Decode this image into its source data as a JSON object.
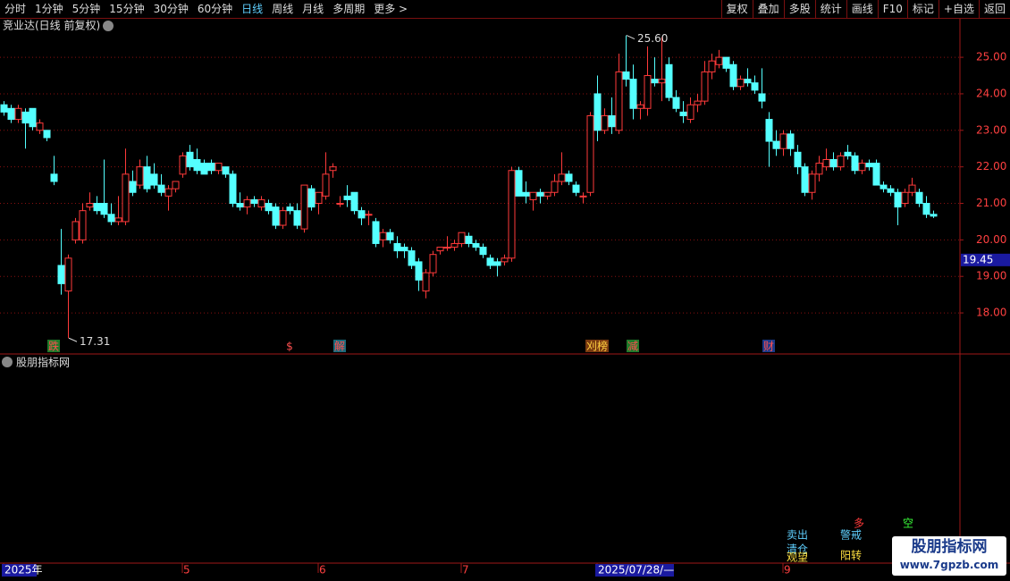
{
  "toolbar": {
    "periods": [
      "分时",
      "1分钟",
      "5分钟",
      "15分钟",
      "30分钟",
      "60分钟",
      "日线",
      "周线",
      "月线",
      "多周期",
      "更多 >"
    ],
    "actions": [
      "复权",
      "叠加",
      "多股",
      "统计",
      "画线",
      "F10",
      "标记",
      "+自选",
      "返回"
    ]
  },
  "chart_data": {
    "type": "candlestick",
    "title": "竞业达(日线 前复权)",
    "categories": [
      "2025年",
      null,
      null,
      null,
      null,
      null,
      null,
      null,
      null,
      null,
      null,
      null,
      null,
      null,
      null,
      null,
      null,
      null,
      null,
      null,
      null,
      null,
      null,
      null,
      null,
      "5",
      null,
      null,
      null,
      null,
      null,
      null,
      null,
      null,
      null,
      null,
      null,
      null,
      null,
      null,
      null,
      null,
      null,
      null,
      "6",
      null,
      null,
      null,
      null,
      null,
      null,
      null,
      null,
      null,
      null,
      null,
      null,
      null,
      null,
      null,
      null,
      null,
      null,
      null,
      "7",
      null,
      null,
      null,
      null,
      null,
      null,
      null,
      null,
      null,
      null,
      null,
      null,
      null,
      null,
      null,
      null,
      null,
      null,
      "2025/07/28/—",
      null,
      null,
      null,
      null,
      null,
      null,
      null,
      null,
      null,
      null,
      null,
      null,
      null,
      null,
      null,
      null,
      null,
      null,
      null,
      null,
      null,
      null,
      null,
      null,
      null,
      "9",
      null,
      null,
      null,
      null,
      null,
      null,
      null,
      null,
      null,
      null,
      null,
      null,
      null,
      null,
      null,
      null,
      null,
      null,
      null,
      null,
      null
    ],
    "open": [
      23.7,
      23.6,
      23.3,
      23.5,
      23.6,
      23.0,
      23.0,
      21.8,
      19.3,
      18.6,
      20.0,
      20.0,
      20.9,
      21.0,
      21.0,
      20.7,
      20.5,
      20.5,
      21.6,
      21.5,
      22.0,
      21.8,
      21.5,
      21.2,
      21.4,
      21.8,
      22.4,
      22.2,
      22.1,
      22.1,
      21.9,
      22.0,
      21.8,
      21.0,
      20.9,
      21.1,
      20.9,
      21.0,
      20.9,
      20.4,
      20.9,
      20.8,
      20.3,
      21.4,
      21.0,
      21.2,
      21.9,
      21.0,
      21.2,
      21.3,
      20.8,
      20.7,
      20.5,
      20.0,
      20.2,
      19.9,
      19.8,
      19.7,
      19.4,
      18.6,
      19.1,
      19.7,
      19.8,
      19.8,
      19.9,
      20.1,
      19.9,
      19.8,
      19.5,
      19.4,
      19.4,
      19.5,
      21.9,
      21.3,
      21.1,
      21.3,
      21.2,
      21.3,
      21.6,
      21.8,
      21.5,
      21.2,
      21.3,
      24.0,
      23.0,
      23.4,
      23.0,
      24.6,
      24.4,
      23.6,
      23.6,
      24.4,
      24.3,
      24.8,
      23.9,
      23.5,
      23.3,
      23.7,
      23.8,
      24.6,
      24.8,
      25.0,
      24.8,
      24.2,
      24.4,
      24.3,
      24.0,
      23.3,
      22.7,
      22.5,
      22.9,
      22.4,
      22.0,
      21.3,
      21.8,
      22.0,
      22.2,
      22.0,
      22.4,
      22.3,
      21.9,
      22.1,
      22.1,
      21.5,
      21.4,
      21.3,
      21.0,
      21.3,
      21.3,
      21.0,
      20.7
    ],
    "high": [
      23.8,
      23.7,
      23.7,
      23.6,
      23.6,
      23.3,
      23.0,
      22.3,
      20.3,
      19.6,
      20.6,
      21.0,
      21.3,
      21.2,
      22.2,
      21.0,
      21.2,
      22.5,
      21.9,
      22.2,
      22.3,
      22.1,
      21.8,
      21.5,
      21.6,
      22.4,
      22.6,
      22.5,
      22.2,
      22.2,
      22.1,
      22.0,
      21.9,
      21.3,
      21.2,
      21.2,
      21.2,
      21.1,
      21.0,
      20.9,
      21.0,
      21.0,
      21.5,
      21.5,
      21.3,
      22.4,
      22.1,
      21.2,
      21.5,
      21.3,
      20.9,
      20.8,
      20.6,
      20.3,
      20.3,
      20.1,
      19.9,
      19.8,
      19.5,
      19.2,
      19.7,
      19.8,
      20.1,
      20.0,
      20.2,
      20.2,
      20.0,
      19.9,
      19.6,
      19.5,
      19.6,
      22.0,
      22.0,
      21.6,
      21.3,
      21.4,
      21.3,
      21.8,
      22.4,
      21.9,
      21.6,
      21.3,
      23.5,
      24.5,
      23.6,
      23.9,
      25.1,
      25.6,
      24.8,
      23.8,
      25.3,
      25.0,
      25.55,
      25.0,
      24.1,
      23.8,
      23.9,
      24.0,
      24.9,
      25.1,
      25.2,
      25.0,
      24.9,
      24.5,
      24.7,
      24.5,
      24.7,
      23.5,
      23.0,
      23.0,
      23.0,
      22.6,
      22.1,
      21.9,
      22.3,
      22.5,
      22.4,
      22.4,
      22.6,
      22.4,
      22.2,
      22.2,
      22.2,
      21.6,
      21.5,
      21.4,
      21.4,
      21.7,
      21.4,
      21.2,
      20.8
    ],
    "low": [
      23.4,
      23.2,
      23.2,
      22.5,
      23.0,
      22.9,
      22.7,
      21.5,
      18.5,
      17.31,
      19.9,
      19.9,
      20.8,
      20.7,
      20.6,
      20.4,
      20.4,
      20.4,
      21.2,
      21.4,
      21.3,
      21.4,
      21.2,
      20.8,
      21.3,
      21.7,
      21.9,
      21.8,
      21.8,
      21.8,
      21.8,
      21.7,
      20.9,
      20.8,
      20.7,
      20.9,
      20.8,
      20.7,
      20.3,
      20.3,
      20.7,
      20.3,
      20.2,
      20.8,
      20.7,
      21.1,
      21.7,
      20.9,
      20.9,
      20.7,
      20.4,
      20.4,
      19.8,
      19.8,
      19.9,
      19.5,
      19.5,
      19.2,
      18.6,
      18.4,
      19.0,
      19.6,
      19.7,
      19.7,
      19.8,
      19.8,
      19.7,
      19.5,
      19.2,
      19.0,
      19.3,
      19.4,
      21.2,
      21.0,
      20.8,
      21.0,
      21.1,
      21.2,
      21.5,
      21.5,
      21.2,
      21.0,
      21.2,
      22.7,
      22.9,
      22.9,
      22.9,
      24.2,
      23.3,
      23.3,
      23.4,
      24.2,
      23.8,
      23.8,
      23.5,
      23.2,
      23.2,
      23.5,
      23.7,
      24.4,
      24.7,
      24.6,
      24.1,
      24.1,
      24.2,
      24.0,
      23.6,
      22.0,
      22.3,
      22.3,
      22.3,
      21.8,
      21.2,
      21.1,
      21.6,
      21.9,
      21.9,
      21.9,
      22.2,
      21.8,
      21.8,
      21.9,
      21.5,
      21.3,
      21.2,
      20.4,
      20.9,
      21.2,
      20.9,
      20.6,
      20.6
    ],
    "close": [
      23.5,
      23.3,
      23.6,
      23.2,
      23.1,
      23.2,
      22.8,
      21.6,
      18.8,
      19.5,
      20.5,
      20.8,
      21.0,
      20.8,
      20.7,
      20.5,
      20.6,
      21.8,
      21.3,
      22.0,
      21.4,
      21.5,
      21.3,
      21.4,
      21.6,
      22.3,
      22.0,
      21.9,
      21.8,
      21.9,
      22.1,
      21.8,
      21.0,
      20.9,
      21.1,
      21.0,
      21.1,
      20.8,
      20.4,
      20.8,
      20.8,
      20.4,
      21.5,
      20.9,
      21.3,
      21.8,
      22.0,
      21.0,
      21.1,
      20.8,
      20.6,
      20.7,
      19.9,
      20.2,
      20.0,
      19.7,
      19.7,
      19.3,
      18.9,
      19.1,
      19.6,
      19.8,
      19.8,
      19.9,
      20.2,
      19.9,
      19.8,
      19.6,
      19.3,
      19.3,
      19.5,
      21.9,
      21.2,
      21.2,
      21.3,
      21.2,
      21.3,
      21.6,
      21.8,
      21.6,
      21.3,
      21.2,
      23.4,
      23.0,
      23.4,
      23.1,
      24.6,
      24.4,
      23.6,
      23.7,
      24.5,
      24.3,
      24.4,
      23.9,
      23.6,
      23.4,
      23.7,
      23.8,
      24.6,
      24.9,
      25.0,
      24.7,
      24.2,
      24.4,
      24.3,
      24.1,
      23.8,
      22.7,
      22.5,
      22.9,
      22.5,
      22.0,
      21.3,
      21.8,
      22.1,
      22.2,
      22.0,
      22.3,
      22.3,
      21.9,
      22.1,
      22.0,
      21.5,
      21.4,
      21.3,
      20.9,
      21.3,
      21.5,
      21.0,
      20.7,
      20.65
    ],
    "signals": [
      null,
      null,
      null,
      null,
      null,
      null,
      null,
      "跌",
      null,
      null,
      null,
      null,
      null,
      null,
      null,
      null,
      null,
      null,
      null,
      null,
      null,
      null,
      null,
      null,
      null,
      null,
      null,
      null,
      null,
      null,
      null,
      null,
      null,
      null,
      null,
      null,
      null,
      null,
      null,
      null,
      "$",
      null,
      null,
      null,
      null,
      null,
      null,
      "解",
      null,
      null,
      null,
      null,
      null,
      null,
      null,
      null,
      null,
      null,
      null,
      null,
      null,
      null,
      null,
      null,
      null,
      null,
      null,
      null,
      null,
      null,
      null,
      null,
      null,
      null,
      null,
      null,
      null,
      null,
      null,
      null,
      null,
      null,
      null,
      "刈榜",
      null,
      null,
      null,
      null,
      "减",
      null,
      null,
      null,
      null,
      null,
      null,
      null,
      null,
      null,
      null,
      null,
      null,
      null,
      null,
      null,
      null,
      null,
      null,
      "财",
      null,
      null,
      null,
      null,
      null,
      null,
      null,
      null,
      null,
      null,
      null,
      null,
      null,
      null,
      null,
      null,
      null,
      null,
      null,
      null,
      null,
      null,
      null
    ],
    "signal_colors": [
      null,
      null,
      null,
      null,
      null,
      null,
      null,
      "#1f7a2a",
      null,
      null,
      null,
      null,
      null,
      null,
      null,
      null,
      null,
      null,
      null,
      null,
      null,
      null,
      null,
      null,
      null,
      null,
      null,
      null,
      null,
      null,
      null,
      null,
      null,
      null,
      null,
      null,
      null,
      null,
      null,
      null,
      "#000000",
      null,
      null,
      null,
      null,
      null,
      null,
      "#1a6a7a",
      null,
      null,
      null,
      null,
      null,
      null,
      null,
      null,
      null,
      null,
      null,
      null,
      null,
      null,
      null,
      null,
      null,
      null,
      null,
      null,
      null,
      null,
      null,
      null,
      null,
      null,
      null,
      null,
      null,
      null,
      null,
      null,
      null,
      null,
      null,
      "#7a3a10",
      null,
      null,
      null,
      null,
      "#1f7a2a",
      null,
      null,
      null,
      null,
      null,
      null,
      null,
      null,
      null,
      null,
      null,
      null,
      null,
      null,
      null,
      null,
      null,
      null,
      "#1a3a8a",
      null,
      null,
      null,
      null,
      null,
      null,
      null,
      null,
      null,
      null,
      null,
      null,
      null,
      null,
      null,
      null,
      null,
      null,
      null,
      null,
      null,
      null,
      null
    ],
    "up_color": "#ff3a3a",
    "down_color": "#54ffff",
    "high_label": {
      "value": 25.6,
      "label": "25.60"
    },
    "low_label": {
      "value": 17.31,
      "label": "17.31"
    },
    "cursor_price": {
      "value": 19.45,
      "label": "19.45"
    },
    "ylim": [
      16.9,
      25.59
    ],
    "yticks": [
      {
        "value": 18,
        "label": "18.00"
      },
      {
        "value": 19,
        "label": "19.00"
      },
      {
        "value": 20,
        "label": "20.00"
      },
      {
        "value": 21,
        "label": "21.00"
      },
      {
        "value": 22,
        "label": "22.00"
      },
      {
        "value": 23,
        "label": "23.00"
      },
      {
        "value": 24,
        "label": "24.00"
      },
      {
        "value": 25,
        "label": "25.00"
      }
    ],
    "grid": true
  },
  "indicator": {
    "title": "股朋指标网",
    "legend": [
      "多",
      "空",
      "卖出",
      "警戒",
      "清仓",
      "观望",
      "阳转"
    ],
    "legend_colors": [
      "#ff3a3a",
      "#3aff3a",
      "#5fd0ff",
      "#5fd0ff",
      "#5fd0ff",
      "#ffe040",
      "#ffe040"
    ]
  },
  "watermark": {
    "name": "股朋指标网",
    "url": "www.7gpzb.com"
  }
}
